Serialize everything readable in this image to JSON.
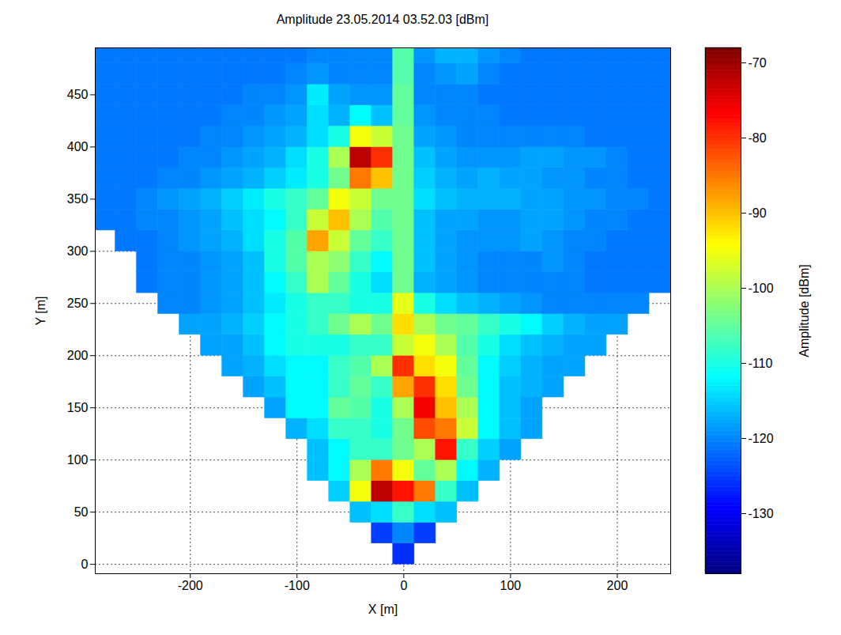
{
  "chart_data": {
    "type": "heatmap",
    "title": "Amplitude 23.05.2014 03.52.03 [dBm]",
    "x_label": "X [m]",
    "y_label": "Y [m]",
    "xlim": [
      -289,
      250
    ],
    "ylim": [
      -9,
      495
    ],
    "xticks": [
      -200,
      -100,
      0,
      100,
      200
    ],
    "yticks": [
      0,
      50,
      100,
      150,
      200,
      250,
      300,
      350,
      400,
      450
    ],
    "grid": true,
    "x": [
      -280,
      -260,
      -240,
      -220,
      -200,
      -180,
      -160,
      -140,
      -120,
      -100,
      -80,
      -60,
      -40,
      -20,
      0,
      20,
      40,
      60,
      80,
      100,
      120,
      140,
      160,
      180,
      200,
      220,
      240
    ],
    "y": [
      10,
      30,
      50,
      70,
      90,
      110,
      130,
      150,
      170,
      190,
      210,
      230,
      250,
      270,
      290,
      310,
      330,
      350,
      370,
      390,
      410,
      430,
      450,
      470,
      490
    ],
    "values": [
      [
        null,
        null,
        null,
        null,
        null,
        null,
        null,
        null,
        null,
        null,
        null,
        null,
        null,
        null,
        -126,
        null,
        null,
        null,
        null,
        null,
        null,
        null,
        null,
        null,
        null,
        null,
        null
      ],
      [
        null,
        null,
        null,
        null,
        null,
        null,
        null,
        null,
        null,
        null,
        null,
        null,
        null,
        -125,
        -120,
        -125,
        null,
        null,
        null,
        null,
        null,
        null,
        null,
        null,
        null,
        null,
        null
      ],
      [
        null,
        null,
        null,
        null,
        null,
        null,
        null,
        null,
        null,
        null,
        null,
        null,
        -116,
        -114,
        -108,
        -114,
        -116,
        null,
        null,
        null,
        null,
        null,
        null,
        null,
        null,
        null,
        null
      ],
      [
        null,
        null,
        null,
        null,
        null,
        null,
        null,
        null,
        null,
        null,
        null,
        -115,
        -95,
        -72,
        -78,
        -85,
        -108,
        -116,
        null,
        null,
        null,
        null,
        null,
        null,
        null,
        null,
        null
      ],
      [
        null,
        null,
        null,
        null,
        null,
        null,
        null,
        null,
        null,
        null,
        -116,
        -112,
        -100,
        -85,
        -95,
        -105,
        -100,
        -112,
        -117,
        null,
        null,
        null,
        null,
        null,
        null,
        null,
        null
      ],
      [
        null,
        null,
        null,
        null,
        null,
        null,
        null,
        null,
        null,
        null,
        -116,
        -112,
        -108,
        -108,
        -104,
        -100,
        -78,
        -108,
        -115,
        -118,
        null,
        null,
        null,
        null,
        null,
        null,
        null
      ],
      [
        null,
        null,
        null,
        null,
        null,
        null,
        null,
        null,
        null,
        -117,
        -114,
        -108,
        -108,
        -110,
        -104,
        -82,
        -85,
        -98,
        -112,
        -116,
        -118,
        null,
        null,
        null,
        null,
        null,
        null
      ],
      [
        null,
        null,
        null,
        null,
        null,
        null,
        null,
        null,
        -118,
        -112,
        -112,
        -105,
        -106,
        -110,
        -100,
        -76,
        -90,
        -100,
        -112,
        -116,
        -118,
        null,
        null,
        null,
        null,
        null,
        null
      ],
      [
        null,
        null,
        null,
        null,
        null,
        null,
        null,
        -118,
        -116,
        -112,
        -112,
        -108,
        -105,
        -108,
        -88,
        -80,
        -92,
        -104,
        -112,
        -116,
        -117,
        -118,
        null,
        null,
        null,
        null,
        null
      ],
      [
        null,
        null,
        null,
        null,
        null,
        null,
        -118,
        -117,
        -114,
        -112,
        -112,
        -108,
        -106,
        -100,
        -80,
        -92,
        -95,
        -105,
        -112,
        -115,
        -117,
        -118,
        -118,
        null,
        null,
        null,
        null
      ],
      [
        null,
        null,
        null,
        null,
        null,
        -118,
        -118,
        -116,
        -112,
        -110,
        -110,
        -110,
        -108,
        -108,
        -98,
        -95,
        -100,
        -106,
        -110,
        -114,
        -116,
        -117,
        -118,
        -118,
        null,
        null,
        null
      ],
      [
        null,
        null,
        null,
        null,
        -118,
        -118,
        -117,
        -115,
        -112,
        -110,
        -108,
        -104,
        -100,
        -104,
        -92,
        -100,
        -104,
        -105,
        -108,
        -110,
        -112,
        -115,
        -117,
        -118,
        -118,
        null,
        null
      ],
      [
        null,
        null,
        null,
        -120,
        -120,
        -119,
        -118,
        -116,
        -113,
        -110,
        -108,
        -108,
        -110,
        -110,
        -96,
        -110,
        -114,
        -116,
        -117,
        -118,
        -119,
        -120,
        -120,
        -120,
        -120,
        -120,
        null
      ],
      [
        null,
        null,
        -121,
        -120,
        -120,
        -119,
        -118,
        -116,
        -112,
        -108,
        -100,
        -105,
        -110,
        -114,
        -104,
        -117,
        -118,
        -119,
        -120,
        -120,
        -120,
        -120,
        -120,
        -121,
        -121,
        -121,
        -121
      ],
      [
        null,
        null,
        -121,
        -120,
        -120,
        -119,
        -118,
        -116,
        -110,
        -106,
        -100,
        -102,
        -108,
        -112,
        -104,
        -116,
        -118,
        -119,
        -120,
        -120,
        -120,
        -119,
        -120,
        -121,
        -121,
        -121,
        -121
      ],
      [
        null,
        -121,
        -121,
        -120,
        -119,
        -118,
        -117,
        -114,
        -110,
        -106,
        -88,
        -98,
        -105,
        -108,
        -104,
        -116,
        -118,
        -119,
        -119,
        -119,
        -118,
        -119,
        -120,
        -120,
        -121,
        -121,
        -121
      ],
      [
        -121,
        -121,
        -120,
        -120,
        -119,
        -118,
        -116,
        -114,
        -112,
        -108,
        -98,
        -90,
        -100,
        -106,
        -104,
        -116,
        -118,
        -118,
        -119,
        -119,
        -118,
        -118,
        -119,
        -120,
        -120,
        -121,
        -121
      ],
      [
        -121,
        -121,
        -120,
        -119,
        -118,
        -117,
        -115,
        -113,
        -110,
        -108,
        -105,
        -95,
        -98,
        -104,
        -104,
        -114,
        -116,
        -117,
        -117,
        -117,
        -118,
        -118,
        -119,
        -119,
        -120,
        -120,
        -121
      ],
      [
        -121,
        -121,
        -121,
        -120,
        -120,
        -119,
        -118,
        -117,
        -115,
        -113,
        -110,
        -104,
        -85,
        -90,
        -104,
        -115,
        -117,
        -118,
        -117,
        -118,
        -118,
        -119,
        -119,
        -120,
        -120,
        -121,
        -121
      ],
      [
        -121,
        -121,
        -121,
        -121,
        -120,
        -120,
        -119,
        -118,
        -117,
        -114,
        -110,
        -100,
        -72,
        -80,
        -104,
        -116,
        -118,
        -119,
        -119,
        -119,
        -118,
        -118,
        -119,
        -119,
        -120,
        -121,
        -121
      ],
      [
        -121,
        -121,
        -121,
        -121,
        -121,
        -120,
        -120,
        -119,
        -118,
        -117,
        -114,
        -110,
        -95,
        -98,
        -104,
        -118,
        -119,
        -120,
        -120,
        -120,
        -120,
        -120,
        -120,
        -121,
        -121,
        -121,
        -121
      ],
      [
        -121,
        -121,
        -121,
        -121,
        -121,
        -121,
        -120,
        -120,
        -119,
        -118,
        -114,
        -117,
        -112,
        -116,
        -105,
        -119,
        -120,
        -120,
        -120,
        -121,
        -121,
        -121,
        -121,
        -121,
        -121,
        -121,
        -121
      ],
      [
        -121,
        -121,
        -121,
        -121,
        -121,
        -121,
        -121,
        -120,
        -120,
        -119,
        -113,
        -118,
        -119,
        -119,
        -105,
        -120,
        -120,
        -120,
        -121,
        -121,
        -121,
        -121,
        -121,
        -121,
        -121,
        -121,
        -121
      ],
      [
        -121,
        -121,
        -121,
        -121,
        -121,
        -121,
        -121,
        -121,
        -121,
        -120,
        -119,
        -120,
        -120,
        -120,
        -106,
        -120,
        -119,
        -118,
        -120,
        -121,
        -121,
        -121,
        -121,
        -121,
        -121,
        -121,
        -121
      ],
      [
        -121,
        -121,
        -121,
        -121,
        -121,
        -121,
        -121,
        -121,
        -121,
        -121,
        -120,
        -120,
        -120,
        -120,
        -106,
        -119,
        -117,
        -117,
        -119,
        -120,
        -121,
        -121,
        -121,
        -121,
        -121,
        -121,
        -121
      ]
    ],
    "colorbar_label": "Amplitude [dBm]",
    "colorbar_range": [
      -138,
      -68
    ],
    "colorbar_ticks": [
      -70,
      -80,
      -90,
      -100,
      -110,
      -120,
      -130
    ]
  }
}
